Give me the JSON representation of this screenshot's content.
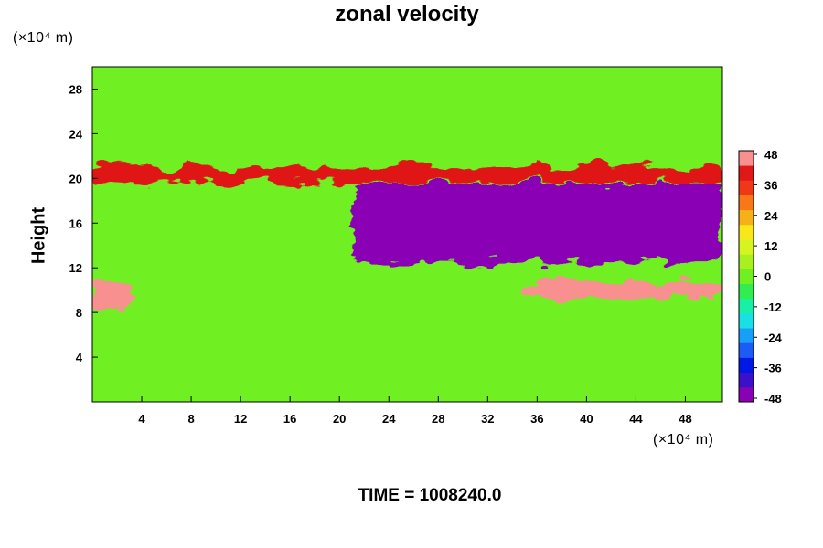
{
  "chart_data": {
    "type": "heatmap",
    "title": "zonal velocity",
    "xlabel": "",
    "ylabel": "Height",
    "x_unit_label": "(×10⁴ m)",
    "y_unit_label": "(×10⁴ m)",
    "footer": "TIME = 1008240.0",
    "x_range": [
      0,
      51
    ],
    "y_range": [
      0,
      30
    ],
    "x_ticks": [
      "4",
      "8",
      "12",
      "16",
      "20",
      "24",
      "28",
      "32",
      "36",
      "40",
      "44",
      "48"
    ],
    "y_ticks": [
      "4",
      "8",
      "12",
      "16",
      "20",
      "24",
      "28"
    ],
    "colorbar": {
      "range": [
        -48,
        48
      ],
      "tick_labels": [
        "48",
        "36",
        "24",
        "12",
        "0",
        "-12",
        "-24",
        "-36",
        "-48"
      ],
      "colors": [
        "#8a00b4",
        "#3a10c8",
        "#0018e6",
        "#1c5cf6",
        "#18a0f8",
        "#18e0e6",
        "#18f0a8",
        "#30ee50",
        "#70f020",
        "#a8f020",
        "#d8f420",
        "#f8e818",
        "#f8b018",
        "#f87818",
        "#f03818",
        "#e01818",
        "#f89090"
      ]
    },
    "features": [
      {
        "name": "upper westerly jet",
        "x": [
          0,
          51
        ],
        "y": [
          19.6,
          21.0
        ],
        "value": 40
      },
      {
        "name": "lower westerly jet",
        "x": [
          35,
          51
        ],
        "y": [
          9.3,
          10.8
        ],
        "value": 48
      },
      {
        "name": "western jet core",
        "x": [
          0,
          3
        ],
        "y": [
          8,
          11
        ],
        "value": 48
      },
      {
        "name": "easterly core",
        "x": [
          21,
          51
        ],
        "y": [
          12.5,
          19.5
        ],
        "value": -48
      },
      {
        "name": "background flow",
        "x": [
          0,
          51
        ],
        "y": [
          0,
          30
        ],
        "value": 2
      }
    ]
  }
}
